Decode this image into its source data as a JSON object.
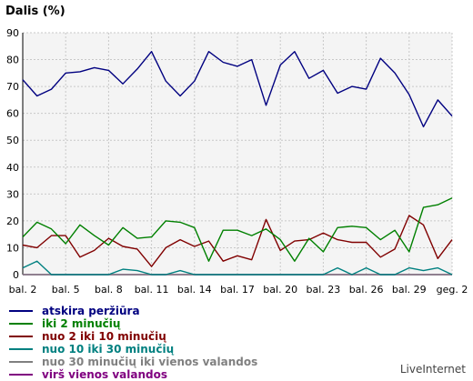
{
  "chart_data": {
    "type": "line",
    "title": "Dalis (%)",
    "ylim": [
      0,
      90
    ],
    "yticks": [
      0,
      10,
      20,
      30,
      40,
      50,
      60,
      70,
      80,
      90
    ],
    "grid": true,
    "legend_position": "bottom-left",
    "x_tick_labels": [
      {
        "index": 0,
        "label": "bal. 2"
      },
      {
        "index": 3,
        "label": "bal. 5"
      },
      {
        "index": 6,
        "label": "bal. 8"
      },
      {
        "index": 9,
        "label": "bal. 11"
      },
      {
        "index": 12,
        "label": "bal. 14"
      },
      {
        "index": 15,
        "label": "bal. 17"
      },
      {
        "index": 18,
        "label": "bal. 20"
      },
      {
        "index": 21,
        "label": "bal. 23"
      },
      {
        "index": 24,
        "label": "bal. 26"
      },
      {
        "index": 27,
        "label": "bal. 29"
      },
      {
        "index": 30,
        "label": "geg. 2"
      }
    ],
    "series": [
      {
        "name": "atskira peržiūra",
        "color": "#000080",
        "values": [
          72.5,
          66.5,
          69,
          75,
          75.5,
          77,
          76,
          71,
          76.5,
          83,
          72,
          66.5,
          72,
          83,
          79,
          77.5,
          80,
          63,
          78,
          83,
          73,
          76,
          67.5,
          70,
          69,
          80.5,
          75,
          67,
          55,
          65,
          59
        ]
      },
      {
        "name": "iki 2 minučių",
        "color": "#008000",
        "values": [
          14,
          19.5,
          17,
          11.5,
          18.5,
          14.5,
          11,
          17.5,
          13.5,
          14,
          20,
          19.5,
          17.5,
          5,
          16.5,
          16.5,
          14.5,
          17,
          13,
          5,
          13.5,
          8.5,
          17.5,
          18,
          17.5,
          13,
          16.5,
          8.5,
          25,
          26,
          28.5
        ]
      },
      {
        "name": "nuo 2 iki 10 minučių",
        "color": "#800000",
        "values": [
          11,
          10,
          14.5,
          14.5,
          6.5,
          9,
          13.5,
          10.5,
          9.5,
          3,
          10,
          13,
          10.5,
          12.5,
          5,
          7,
          5.5,
          20.5,
          9,
          12.5,
          13,
          15.5,
          13,
          12,
          12,
          6.5,
          9.5,
          22,
          18.5,
          6,
          13
        ]
      },
      {
        "name": "nuo 10 iki 30 minučių",
        "color": "#008080",
        "values": [
          2.5,
          5,
          0,
          0,
          0,
          0,
          0,
          2,
          1.5,
          0,
          0,
          1.5,
          0,
          0,
          0,
          0,
          0,
          0,
          0,
          0,
          0,
          0,
          2.5,
          0,
          2.5,
          0,
          0,
          2.5,
          1.5,
          2.5,
          0
        ]
      },
      {
        "name": "nuo 30 minučių iki vienos valandos",
        "color": "#808080",
        "values": [
          0,
          0,
          0,
          0,
          0,
          0,
          0,
          0,
          0,
          0,
          0,
          0,
          0,
          0,
          0,
          0,
          0,
          0,
          0,
          0,
          0,
          0,
          0,
          0,
          0,
          0,
          0,
          0,
          0,
          0,
          0
        ]
      },
      {
        "name": "virš vienos valandos",
        "color": "#800080",
        "values": [
          0,
          0,
          0,
          0,
          0,
          0,
          0,
          0,
          0,
          0,
          0,
          0,
          0,
          0,
          0,
          0,
          0,
          0,
          0,
          0,
          0,
          0,
          0,
          0,
          0,
          0,
          0,
          0,
          0,
          0,
          0
        ]
      }
    ]
  },
  "brand": "LiveInternet"
}
